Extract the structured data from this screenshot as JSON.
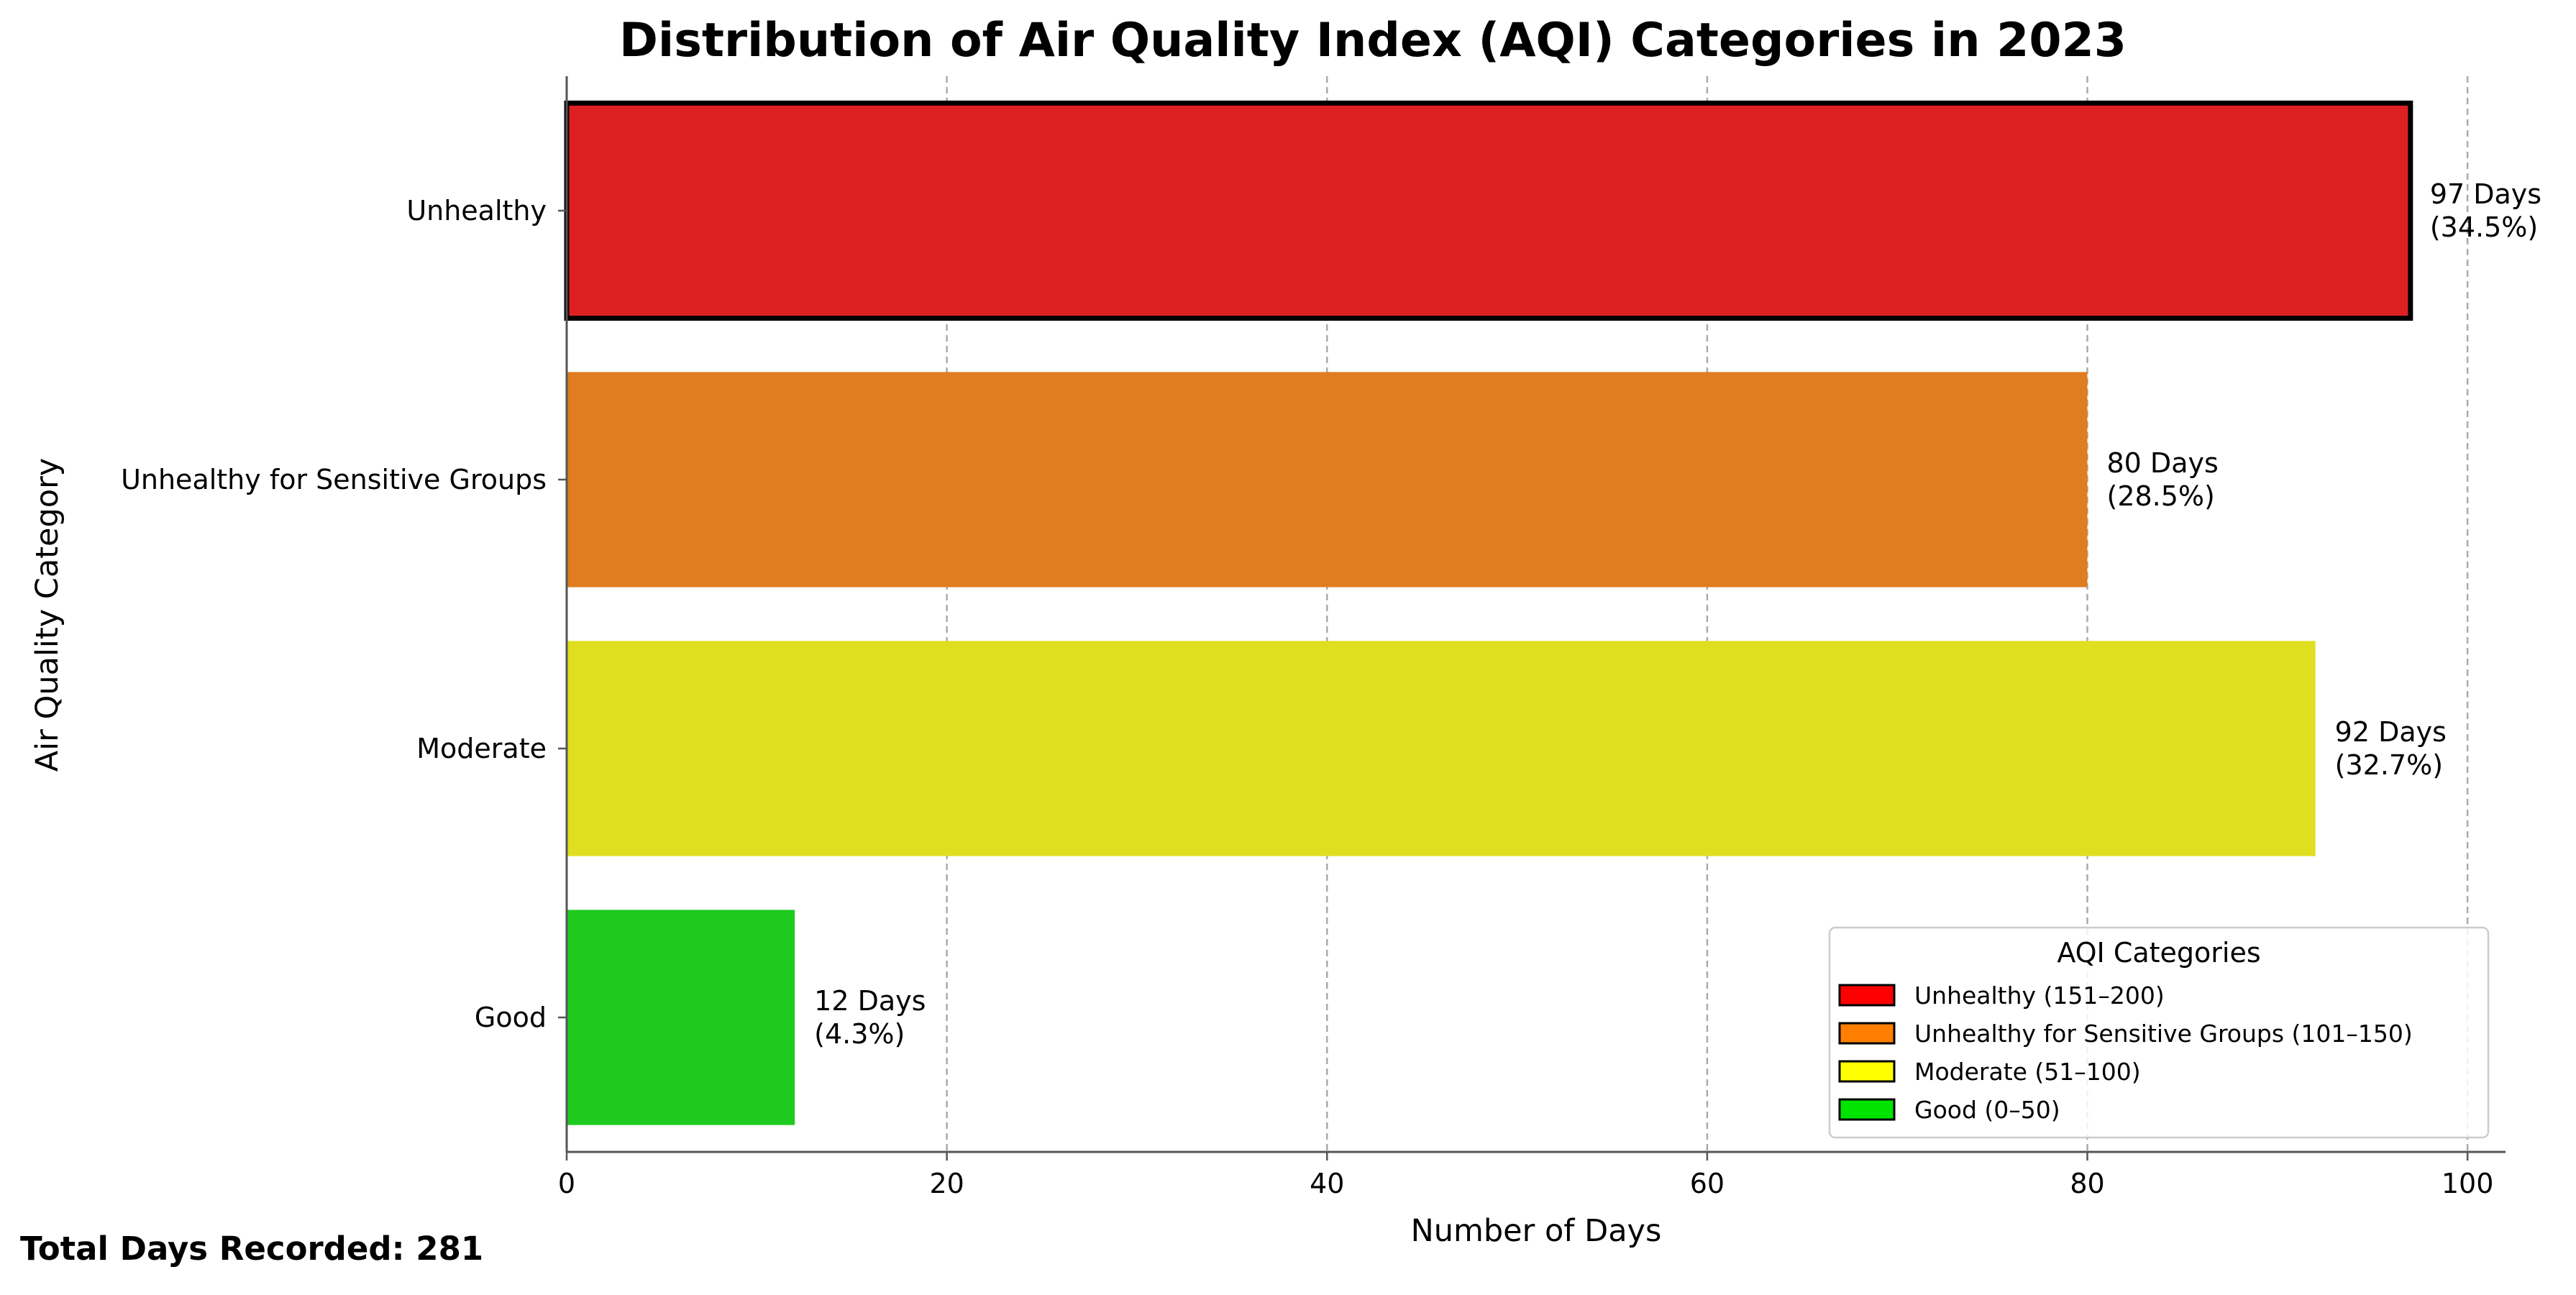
{
  "chart_data": {
    "type": "bar",
    "orientation": "horizontal",
    "title": "Distribution of Air Quality Index (AQI) Categories in 2023",
    "xlabel": "Number of Days",
    "ylabel": "Air Quality Category",
    "xlim": [
      0,
      102
    ],
    "xticks": [
      0,
      20,
      40,
      60,
      80,
      100
    ],
    "grid": "x dashed",
    "categories": [
      "Unhealthy",
      "Unhealthy for Sensitive Groups",
      "Moderate",
      "Good"
    ],
    "values": [
      97,
      80,
      92,
      12
    ],
    "percents": [
      "34.5%",
      "28.5%",
      "32.7%",
      "4.3%"
    ],
    "data_labels": [
      [
        "97 Days",
        "(34.5%)"
      ],
      [
        "80 Days",
        "(28.5%)"
      ],
      [
        "92 Days",
        "(32.7%)"
      ],
      [
        "12 Days",
        "(4.3%)"
      ]
    ],
    "bar_colors": [
      "#df2022",
      "#df7d20",
      "#dfdf20",
      "#1fca1f"
    ],
    "highlighted_bar": "Unhealthy",
    "legend": {
      "title": "AQI Categories",
      "placement": "lower-right",
      "entries": [
        {
          "label": "Unhealthy (151–200)",
          "color": "#ff0000"
        },
        {
          "label": "Unhealthy for Sensitive Groups (101–150)",
          "color": "#ff7e00"
        },
        {
          "label": "Moderate (51–100)",
          "color": "#ffff00"
        },
        {
          "label": "Good (0–50)",
          "color": "#00e400"
        }
      ]
    }
  },
  "footer": {
    "total_note": "Total Days Recorded: 281"
  }
}
